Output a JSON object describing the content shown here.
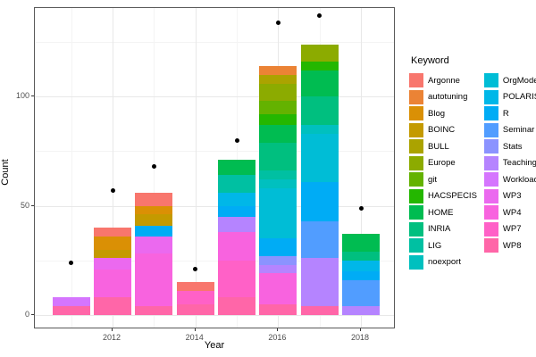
{
  "figure": {
    "xlabel": "Year",
    "ylabel": "Count",
    "legend_title": "Keyword"
  },
  "chart_data": {
    "type": "bar",
    "subtype": "stacked bars by keyword with black point overlay per year",
    "title": "",
    "xlabel": "Year",
    "ylabel": "Count",
    "x_ticks": [
      2012,
      2014,
      2016,
      2018
    ],
    "y_ticks": [
      0,
      50,
      100
    ],
    "xlim": [
      2010.1,
      2018.9
    ],
    "ylim": [
      -7,
      141
    ],
    "grid": "light gray major gridlines at x ticks and y 0/50/100, minor at odd years and y 25/75/125, white panel, dark gray border",
    "legend_title": "Keyword",
    "legend_position": "right, two columns",
    "keywords": [
      {
        "name": "Argonne",
        "color": "#F8766D"
      },
      {
        "name": "autotuning",
        "color": "#EB8335"
      },
      {
        "name": "Blog",
        "color": "#DA9005"
      },
      {
        "name": "BOINC",
        "color": "#C49A00"
      },
      {
        "name": "BULL",
        "color": "#ABA300"
      },
      {
        "name": "Europe",
        "color": "#8CAB00"
      },
      {
        "name": "git",
        "color": "#64B200"
      },
      {
        "name": "HACSPECIS",
        "color": "#24B700"
      },
      {
        "name": "HOME",
        "color": "#00BC51"
      },
      {
        "name": "INRIA",
        "color": "#00BF7F"
      },
      {
        "name": "LIG",
        "color": "#00C0A2"
      },
      {
        "name": "noexport",
        "color": "#00C0BF"
      },
      {
        "name": "OrgMode",
        "color": "#00BDD6"
      },
      {
        "name": "POLARIS",
        "color": "#00B7E8"
      },
      {
        "name": "R",
        "color": "#00ACF5"
      },
      {
        "name": "Seminar",
        "color": "#519DFF"
      },
      {
        "name": "Stats",
        "color": "#8B93FF"
      },
      {
        "name": "Teaching",
        "color": "#B584FF"
      },
      {
        "name": "Workload",
        "color": "#D575FE"
      },
      {
        "name": "WP3",
        "color": "#EB69EF"
      },
      {
        "name": "WP4",
        "color": "#F863DF"
      },
      {
        "name": "WP7",
        "color": "#FF61C7"
      },
      {
        "name": "WP8",
        "color": "#FF66A8"
      }
    ],
    "bars": [
      {
        "year": 2011,
        "total": 8,
        "segments": [
          {
            "keyword": "WP8",
            "value": 4
          },
          {
            "keyword": "Workload",
            "value": 4
          }
        ]
      },
      {
        "year": 2012,
        "total": 40,
        "segments": [
          {
            "keyword": "WP8",
            "value": 8
          },
          {
            "keyword": "WP4",
            "value": 13
          },
          {
            "keyword": "WP3",
            "value": 5
          },
          {
            "keyword": "BOINC",
            "value": 4
          },
          {
            "keyword": "Blog",
            "value": 6
          },
          {
            "keyword": "Argonne",
            "value": 4
          }
        ]
      },
      {
        "year": 2013,
        "total": 56,
        "segments": [
          {
            "keyword": "WP8",
            "value": 4
          },
          {
            "keyword": "WP4",
            "value": 24
          },
          {
            "keyword": "WP3",
            "value": 8
          },
          {
            "keyword": "R",
            "value": 5
          },
          {
            "keyword": "BOINC",
            "value": 5
          },
          {
            "keyword": "Blog",
            "value": 4
          },
          {
            "keyword": "Argonne",
            "value": 6
          }
        ]
      },
      {
        "year": 2014,
        "total": 15,
        "segments": [
          {
            "keyword": "WP8",
            "value": 5
          },
          {
            "keyword": "WP7",
            "value": 6
          },
          {
            "keyword": "Argonne",
            "value": 4
          }
        ]
      },
      {
        "year": 2015,
        "total": 71,
        "segments": [
          {
            "keyword": "WP8",
            "value": 8
          },
          {
            "keyword": "WP7",
            "value": 17
          },
          {
            "keyword": "WP4",
            "value": 13
          },
          {
            "keyword": "Teaching",
            "value": 7
          },
          {
            "keyword": "R",
            "value": 5
          },
          {
            "keyword": "POLARIS",
            "value": 6
          },
          {
            "keyword": "LIG",
            "value": 8
          },
          {
            "keyword": "HOME",
            "value": 7
          }
        ]
      },
      {
        "year": 2016,
        "total": 114,
        "segments": [
          {
            "keyword": "WP8",
            "value": 5
          },
          {
            "keyword": "WP4",
            "value": 14
          },
          {
            "keyword": "Teaching",
            "value": 4
          },
          {
            "keyword": "Stats",
            "value": 4
          },
          {
            "keyword": "R",
            "value": 8
          },
          {
            "keyword": "OrgMode",
            "value": 23
          },
          {
            "keyword": "noexport",
            "value": 4
          },
          {
            "keyword": "LIG",
            "value": 4
          },
          {
            "keyword": "INRIA",
            "value": 13
          },
          {
            "keyword": "HOME",
            "value": 8
          },
          {
            "keyword": "HACSPECIS",
            "value": 5
          },
          {
            "keyword": "git",
            "value": 6
          },
          {
            "keyword": "Europe",
            "value": 8
          },
          {
            "keyword": "BULL",
            "value": 4
          },
          {
            "keyword": "autotuning",
            "value": 4
          }
        ]
      },
      {
        "year": 2017,
        "total": 124,
        "segments": [
          {
            "keyword": "WP8",
            "value": 4
          },
          {
            "keyword": "Teaching",
            "value": 22
          },
          {
            "keyword": "Seminar",
            "value": 17
          },
          {
            "keyword": "R",
            "value": 18
          },
          {
            "keyword": "OrgMode",
            "value": 22
          },
          {
            "keyword": "noexport",
            "value": 4
          },
          {
            "keyword": "INRIA",
            "value": 13
          },
          {
            "keyword": "HOME",
            "value": 12
          },
          {
            "keyword": "HACSPECIS",
            "value": 4
          },
          {
            "keyword": "Europe",
            "value": 8
          }
        ]
      },
      {
        "year": 2018,
        "total": 37,
        "segments": [
          {
            "keyword": "Teaching",
            "value": 4
          },
          {
            "keyword": "Seminar",
            "value": 12
          },
          {
            "keyword": "R",
            "value": 4
          },
          {
            "keyword": "POLARIS",
            "value": 5
          },
          {
            "keyword": "INRIA",
            "value": 4
          },
          {
            "keyword": "HOME",
            "value": 8
          }
        ]
      }
    ],
    "points": [
      {
        "year": 2011,
        "value": 24
      },
      {
        "year": 2012,
        "value": 57
      },
      {
        "year": 2013,
        "value": 68
      },
      {
        "year": 2014,
        "value": 21
      },
      {
        "year": 2015,
        "value": 80
      },
      {
        "year": 2016,
        "value": 134
      },
      {
        "year": 2017,
        "value": 137
      },
      {
        "year": 2018,
        "value": 49
      }
    ]
  }
}
